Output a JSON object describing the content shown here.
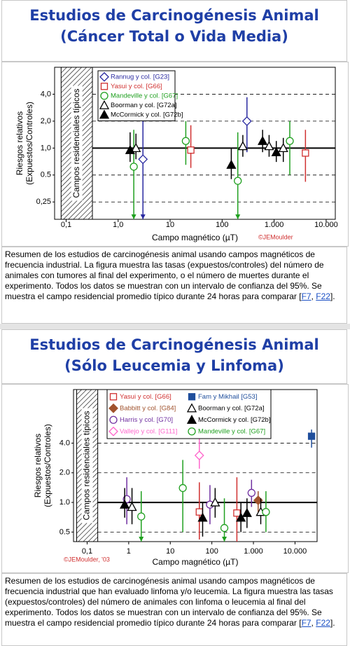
{
  "chart_data": [
    {
      "type": "scatter",
      "title": [
        "Estudios de Carcinogénesis Animal",
        "(Cáncer Total o Vida Media)"
      ],
      "xlabel": "Campo magnético (µT)",
      "ylabel": [
        "Riesgos relativos",
        "(Expuestos/Controles)"
      ],
      "band_label": "Campos residenciales típicos",
      "band": [
        0.08,
        0.32
      ],
      "annotation": "©JEMoulder",
      "xscale": "log",
      "yscale": "log",
      "xlim": [
        0.06,
        15000
      ],
      "ylim": [
        0.16,
        8
      ],
      "xticks": [
        {
          "value": 0.1,
          "label": "0,1"
        },
        {
          "value": 1,
          "label": "1,0"
        },
        10,
        100,
        {
          "value": 1000,
          "label": "1.000"
        },
        {
          "value": 10000,
          "label": "10.000"
        }
      ],
      "yticks": [
        {
          "value": 4,
          "label": "4,0"
        },
        {
          "value": 2,
          "label": "2,0"
        },
        {
          "value": 1,
          "label": "1,0"
        },
        0.5,
        {
          "value": 0.25,
          "label": "0,25"
        }
      ],
      "grid": true,
      "reference_line": 1,
      "series": [
        {
          "name": "Rannug y col. [G23]",
          "color": "#2a2aa0",
          "marker": "diamond",
          "filled": false,
          "x": [
            3,
            300
          ],
          "values": [
            0.75,
            2.0
          ],
          "low": [
            0.1,
            0.9
          ],
          "high": [
            2.0,
            3.7
          ]
        },
        {
          "name": "Yasui y col. [G66]",
          "color": "#d03030",
          "marker": "square",
          "filled": false,
          "x": [
            25,
            4000
          ],
          "values": [
            0.95,
            0.88
          ],
          "low": [
            0.6,
            0.42
          ],
          "high": [
            1.8,
            1.6
          ]
        },
        {
          "name": "Mandeville y col. [G67]",
          "color": "#20a020",
          "marker": "circle",
          "filled": false,
          "x": [
            2,
            20,
            200,
            2000
          ],
          "values": [
            0.62,
            1.2,
            0.43,
            1.2
          ],
          "low": [
            0.1,
            0.65,
            0.1,
            0.5
          ],
          "high": [
            1.6,
            2.0,
            1.5,
            2.0
          ]
        },
        {
          "name": "Boorman y col. [G72a]",
          "color": "#000000",
          "marker": "triangle",
          "filled": false,
          "x": [
            2.2,
            250,
            800,
            1500
          ],
          "values": [
            1.0,
            1.05,
            1.05,
            1.0
          ],
          "low": [
            0.75,
            0.8,
            0.8,
            0.7
          ],
          "high": [
            1.45,
            1.4,
            1.4,
            1.3
          ]
        },
        {
          "name": "McCormick y col. [G72b]",
          "color": "#000000",
          "marker": "triangle",
          "filled": true,
          "x": [
            1.7,
            150,
            600,
            1100
          ],
          "values": [
            0.95,
            0.65,
            1.2,
            0.9
          ],
          "low": [
            0.7,
            0.45,
            0.9,
            0.7
          ],
          "high": [
            1.5,
            1.0,
            1.6,
            1.2
          ]
        }
      ],
      "caption": [
        {
          "text": "Resumen de los estudios de carcinogénesis animal usando campos magnéticos de frecuencia industrial. La figura muestra las tasas (expuestos/controles) del número de animales con tumores al final del experimento, o el número de muertes durante el experimento. Todos los datos se muestran con un intervalo de confianza del 95%. Se muestra el campo residencial promedio típico durante 24 horas para comparar ["
        },
        {
          "link": "F7"
        },
        {
          "text": ", "
        },
        {
          "link": "F22"
        },
        {
          "text": "]."
        }
      ]
    },
    {
      "type": "scatter",
      "title": [
        "Estudios de Carcinogénesis Animal",
        "(Sólo Leucemia y Linfoma)"
      ],
      "xlabel": "Campo magnético (µT)",
      "ylabel": [
        "Riesgos relativos",
        "(Expuestos/Controles)"
      ],
      "band_label": "Campos residenciales típicos",
      "band": [
        0.056,
        0.18
      ],
      "annotation": "©JEMoulder, '03",
      "xscale": "log",
      "yscale": "log",
      "xlim": [
        0.047,
        34000
      ],
      "ylim": [
        0.4,
        14
      ],
      "xticks": [
        {
          "value": 0.1,
          "label": "0,1"
        },
        1,
        10,
        100,
        {
          "value": 1000,
          "label": "1.000"
        },
        {
          "value": 10000,
          "label": "10.000"
        }
      ],
      "yticks": [
        {
          "value": 4,
          "label": "4.0"
        },
        {
          "value": 2,
          "label": "2.0"
        },
        {
          "value": 1,
          "label": "1.0"
        },
        0.5
      ],
      "grid": true,
      "reference_line": 1,
      "series": [
        {
          "name": "Yasui y col. [G66]",
          "color": "#d03030",
          "marker": "square",
          "filled": false,
          "x": [
            50,
            400
          ],
          "values": [
            0.8,
            0.78
          ],
          "low": [
            0.42,
            0.4
          ],
          "high": [
            1.6,
            1.8
          ]
        },
        {
          "name": "Babbitt y col. [G84]",
          "color": "#a0522d",
          "marker": "diamond",
          "filled": true,
          "x": [
            1300
          ],
          "values": [
            1.05
          ],
          "low": [
            0.8
          ],
          "high": [
            1.3
          ]
        },
        {
          "name": "Harris y col. [G70]",
          "color": "#7030a0",
          "marker": "circle",
          "filled": false,
          "x": [
            0.9,
            90,
            900
          ],
          "values": [
            1.08,
            0.95,
            1.25
          ],
          "low": [
            0.6,
            0.6,
            0.9
          ],
          "high": [
            1.8,
            1.5,
            1.7
          ]
        },
        {
          "name": "Vallejo y col. [G111]",
          "color": "#ff66cc",
          "marker": "diamond",
          "filled": false,
          "x": [
            50
          ],
          "values": [
            3.0
          ],
          "low": [
            2.2
          ],
          "high": [
            4.5
          ]
        },
        {
          "name": "Fam y Mikhail [G53]",
          "color": "#1f4e9c",
          "marker": "square",
          "filled": true,
          "x": [
            25000
          ],
          "values": [
            4.7
          ],
          "low": [
            3.6
          ],
          "high": [
            5.5
          ]
        },
        {
          "name": "Boorman y col. [G72a]",
          "color": "#000000",
          "marker": "triangle",
          "filled": false,
          "x": [
            1.2,
            120,
            1500
          ],
          "values": [
            0.9,
            1.0,
            0.8
          ],
          "low": [
            0.6,
            0.7,
            0.6
          ],
          "high": [
            1.4,
            1.4,
            1.1
          ]
        },
        {
          "name": "McCormick y col. [G72b]",
          "color": "#000000",
          "marker": "triangle",
          "filled": true,
          "x": [
            0.8,
            60,
            500,
            700
          ],
          "values": [
            0.95,
            0.7,
            0.7,
            0.78
          ],
          "low": [
            0.7,
            0.45,
            0.5,
            0.55
          ],
          "high": [
            1.4,
            1.0,
            1.0,
            1.1
          ]
        },
        {
          "name": "Mandeville y col. [G67]",
          "color": "#20a020",
          "marker": "circle",
          "filled": false,
          "x": [
            2,
            20,
            200,
            2000
          ],
          "values": [
            0.72,
            1.4,
            0.55,
            0.8
          ],
          "low": [
            0.2,
            0.5,
            0.2,
            0.5
          ],
          "high": [
            1.3,
            2.7,
            1.1,
            1.3
          ]
        }
      ],
      "caption": [
        {
          "text": "Resumen de los estudios de carcinogénesis animal usando campos magnéticos de frecuencia industrial que han evaluado linfoma y/o leucemia. La figura muestra las tasas (expuestos/controles) del número de animales con linfoma o leucemia al final del experimento. Todos los datos se muestran con un intervalo de confianza del 95%. Se muestra el campo residencial promedio típico durante 24 horas para comparar ["
        },
        {
          "link": "F7"
        },
        {
          "text": ", "
        },
        {
          "link": "F22"
        },
        {
          "text": "]."
        }
      ]
    }
  ]
}
